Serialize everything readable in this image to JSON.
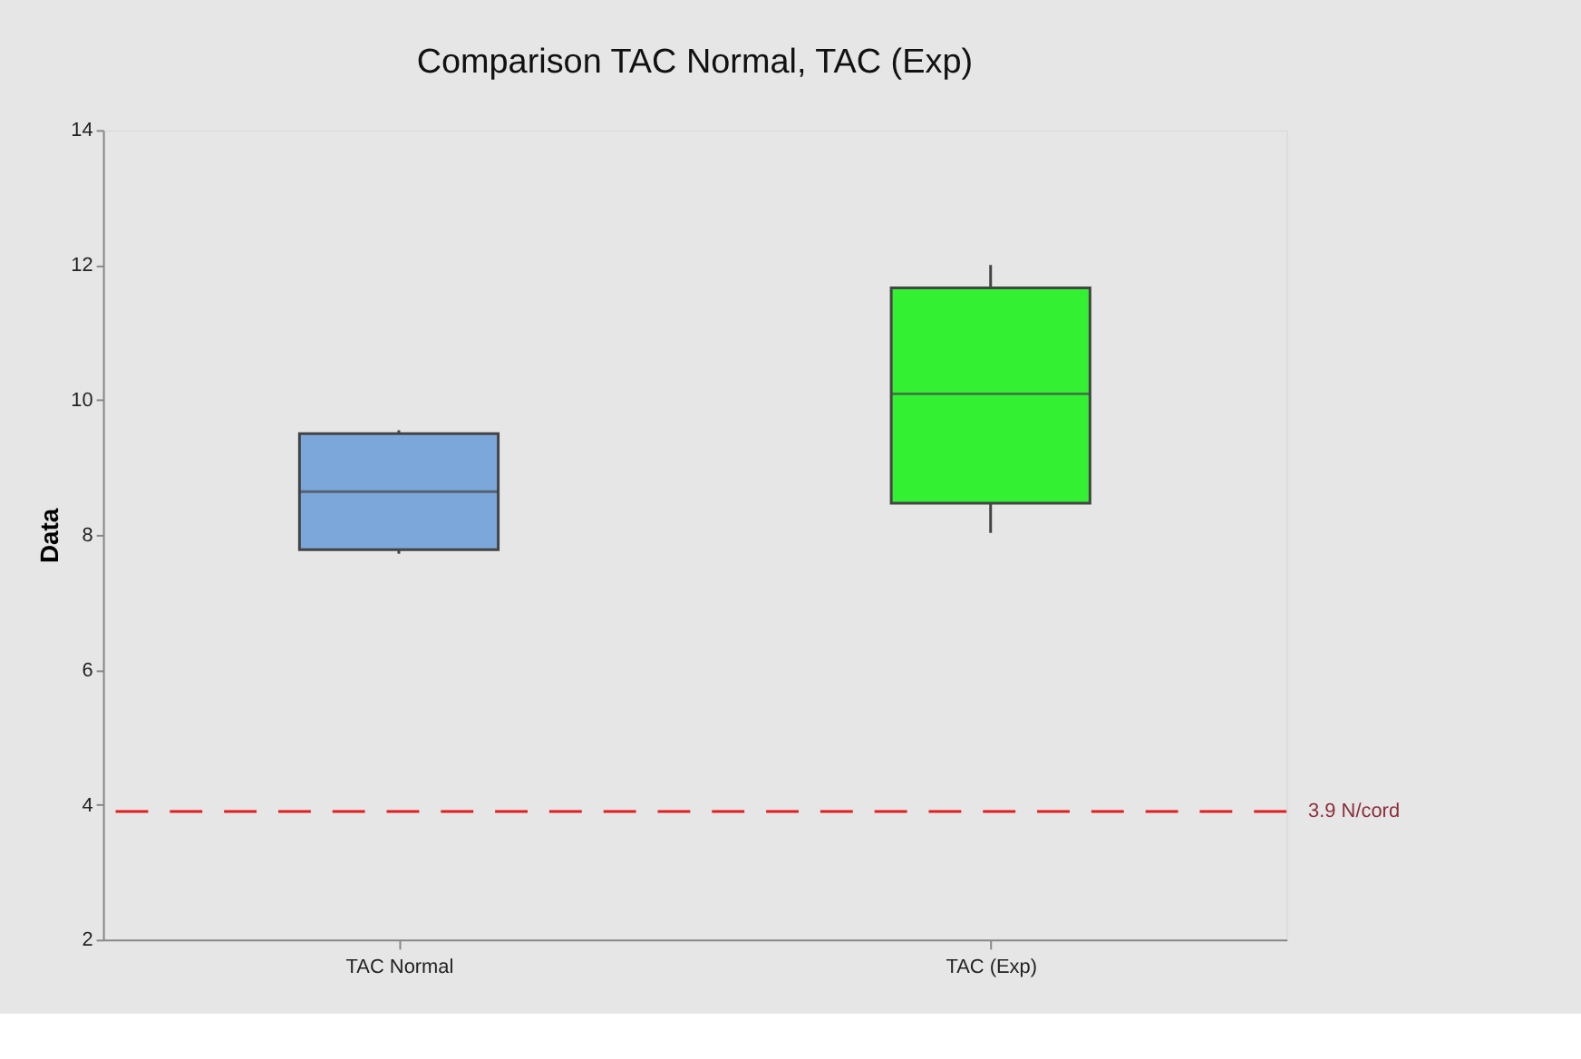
{
  "chart_data": {
    "type": "box",
    "title": "Comparison TAC Normal, TAC (Exp)",
    "ylabel": "Data",
    "categories": [
      "TAC Normal",
      "TAC (Exp)"
    ],
    "boxes": [
      {
        "low": 7.72,
        "q1": 7.78,
        "median": 8.64,
        "q3": 9.5,
        "high": 9.55
      },
      {
        "low": 8.03,
        "q1": 8.47,
        "median": 10.09,
        "q3": 11.66,
        "high": 12.0
      }
    ],
    "colors": [
      "#7ba7db",
      "#33f033"
    ],
    "ylim": [
      2,
      14
    ],
    "yticks": [
      2,
      4,
      6,
      8,
      10,
      12,
      14
    ],
    "grid": false,
    "ref_lines": [
      {
        "axis": "y",
        "value": 3.9,
        "label": "3.9 N/cord",
        "color": "#e02020",
        "line_style": "dashed"
      }
    ]
  }
}
